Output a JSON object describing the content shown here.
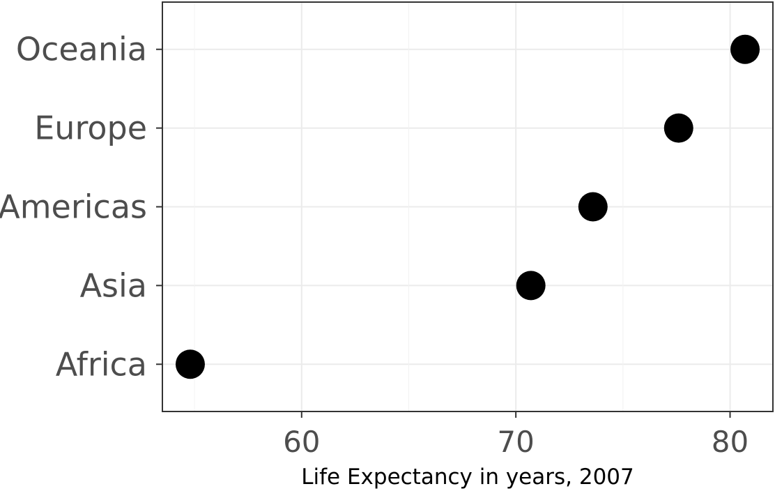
{
  "chart_data": {
    "type": "scatter",
    "title": "",
    "xlabel": "Life Expectancy in years, 2007",
    "ylabel": "",
    "xlim": [
      53.5,
      82.0
    ],
    "x_ticks": [
      60,
      70,
      80
    ],
    "x_minor_ticks": [
      55,
      65,
      75
    ],
    "categories": [
      "Africa",
      "Asia",
      "Americas",
      "Europe",
      "Oceania"
    ],
    "points": [
      {
        "category": "Africa",
        "x": 54.8
      },
      {
        "category": "Asia",
        "x": 70.7
      },
      {
        "category": "Americas",
        "x": 73.6
      },
      {
        "category": "Europe",
        "x": 77.6
      },
      {
        "category": "Oceania",
        "x": 80.7
      }
    ],
    "grid": true,
    "legend": "none",
    "point_color": "#000000"
  }
}
